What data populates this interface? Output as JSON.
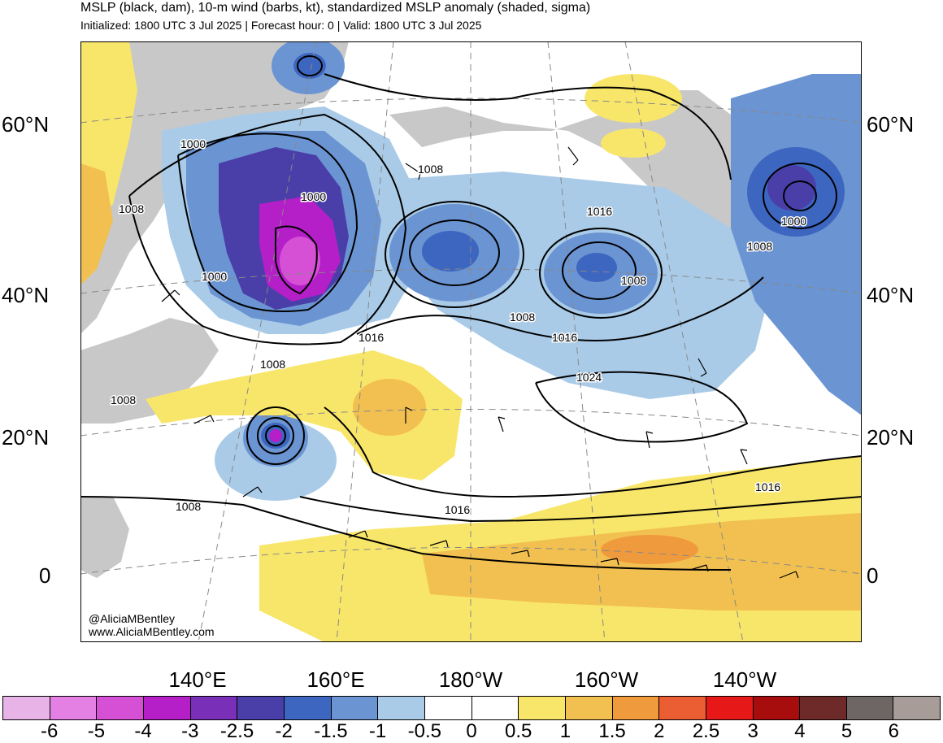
{
  "header": {
    "title": "MSLP (black, dam), 10-m wind (barbs, kt), standardized MSLP anomaly (shaded, sigma)",
    "subtitle": "Initialized: 1800 UTC 3 Jul 2025 | Forecast hour: 0 | Valid: 1800 UTC 3 Jul 2025"
  },
  "map": {
    "region": "North Pacific",
    "credit_handle": "@AliciaMBentley",
    "credit_url": "www.AliciaMBentley.com",
    "lat_labels": [
      "60°N",
      "40°N",
      "20°N",
      "0"
    ],
    "lon_labels": [
      "140°E",
      "160°E",
      "180°W",
      "160°W",
      "140°W"
    ],
    "contour_labels": [
      "1000",
      "1000",
      "1000",
      "1008",
      "1008",
      "1008",
      "1008",
      "1008",
      "1016",
      "1008",
      "1016",
      "1016",
      "1024",
      "1000",
      "1008",
      "1016",
      "1008",
      "1016"
    ],
    "colors": {
      "land": "#c8c8c8",
      "ocean": "#ffffff",
      "contour": "#000000",
      "grid": "#888888"
    }
  },
  "colorbar": {
    "labels": [
      "-6",
      "-5",
      "-4",
      "-3",
      "-2.5",
      "-2",
      "-1.5",
      "-1",
      "-0.5",
      "0",
      "0.5",
      "1",
      "1.5",
      "2",
      "2.5",
      "3",
      "4",
      "5",
      "6"
    ],
    "colors": [
      "#e8b4e8",
      "#e47fe4",
      "#d650d6",
      "#b51fc8",
      "#7a2fb8",
      "#4a3fa8",
      "#3d66c0",
      "#6b94d2",
      "#a9cbe8",
      "#ffffff",
      "#ffffff",
      "#f8e66a",
      "#f2c050",
      "#ef9a3c",
      "#eb5e34",
      "#e61818",
      "#a80d0d",
      "#6e2a28",
      "#6e6664",
      "#a89c98"
    ]
  }
}
